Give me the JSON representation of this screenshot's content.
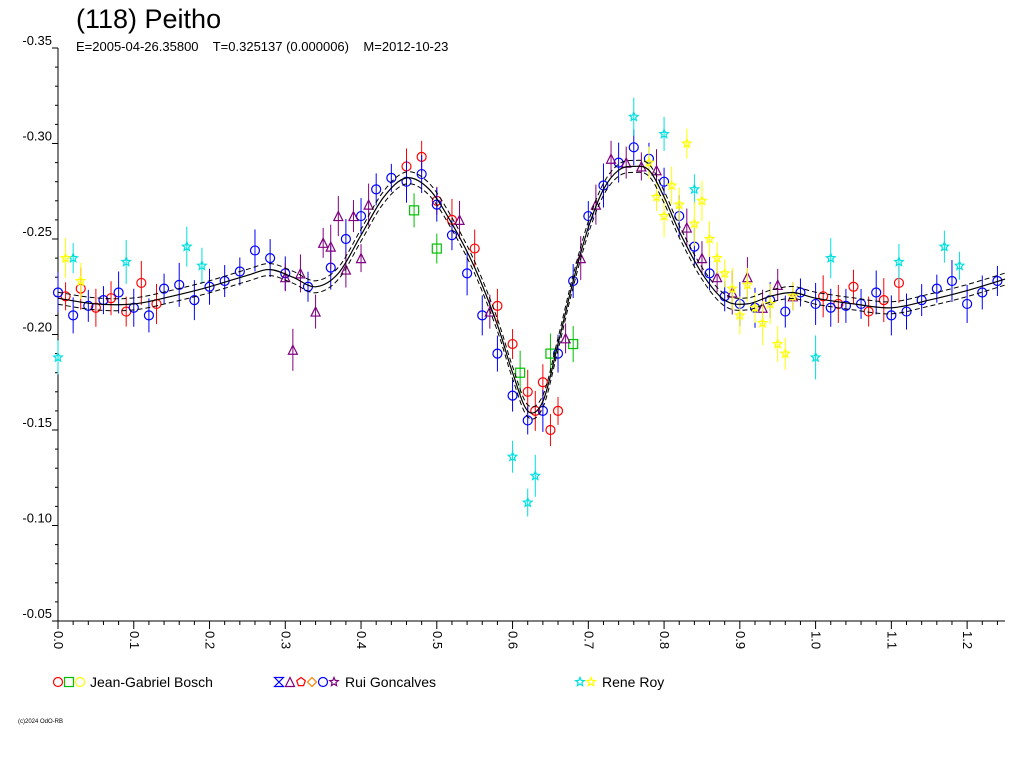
{
  "header": {
    "title": "(118) Peitho",
    "subtitle": "E=2005-04-26.35800    T=0.325137 (0.000006)    M=2012-10-23"
  },
  "legend": [
    {
      "name": "Jean-Gabriel Bosch",
      "symbols": [
        {
          "shape": "circle",
          "color": "#ff0000"
        },
        {
          "shape": "square",
          "color": "#00c000"
        },
        {
          "shape": "circle",
          "color": "#ffff00"
        }
      ]
    },
    {
      "name": "Rui Goncalves",
      "symbols": [
        {
          "shape": "hourglass",
          "color": "#0000ff"
        },
        {
          "shape": "triangle",
          "color": "#800080"
        },
        {
          "shape": "pentagon",
          "color": "#ff0000"
        },
        {
          "shape": "diamond",
          "color": "#ff8000"
        },
        {
          "shape": "circle",
          "color": "#0000ff"
        },
        {
          "shape": "star",
          "color": "#800080"
        }
      ]
    },
    {
      "name": "Rene Roy",
      "symbols": [
        {
          "shape": "star",
          "color": "#00e0e0"
        },
        {
          "shape": "star",
          "color": "#ffff00"
        }
      ]
    }
  ],
  "copyright": "(c)2024 OdO-RB",
  "chart_data": {
    "type": "scatter",
    "title": "(118) Peitho",
    "subtitle": "E=2005-04-26.35800    T=0.325137 (0.000006)    M=2012-10-23",
    "xlabel": "",
    "ylabel": "",
    "xlim": [
      0.0,
      1.25
    ],
    "ylim": [
      -0.35,
      -0.05
    ],
    "y_inverted": true,
    "grid": false,
    "x_ticks": [
      "0.0",
      "0.1",
      "0.2",
      "0.3",
      "0.4",
      "0.5",
      "0.6",
      "0.7",
      "0.8",
      "0.9",
      "1.0",
      "1.1",
      "1.2"
    ],
    "y_ticks": [
      "-0.35",
      "-0.30",
      "-0.25",
      "-0.20",
      "-0.15",
      "-0.10",
      "-0.05"
    ],
    "fit_curve": {
      "phase": [
        0.0,
        0.05,
        0.1,
        0.15,
        0.2,
        0.25,
        0.28,
        0.31,
        0.34,
        0.37,
        0.4,
        0.43,
        0.46,
        0.49,
        0.52,
        0.55,
        0.58,
        0.6,
        0.62,
        0.64,
        0.66,
        0.68,
        0.7,
        0.72,
        0.74,
        0.76,
        0.78,
        0.8,
        0.82,
        0.85,
        0.88,
        0.91,
        0.94,
        0.97,
        1.0,
        1.05,
        1.1,
        1.15,
        1.2,
        1.25
      ],
      "mag": [
        -0.219,
        -0.216,
        -0.216,
        -0.22,
        -0.225,
        -0.231,
        -0.234,
        -0.23,
        -0.225,
        -0.232,
        -0.252,
        -0.272,
        -0.282,
        -0.276,
        -0.258,
        -0.235,
        -0.205,
        -0.18,
        -0.16,
        -0.165,
        -0.195,
        -0.228,
        -0.256,
        -0.276,
        -0.286,
        -0.288,
        -0.286,
        -0.272,
        -0.254,
        -0.232,
        -0.218,
        -0.216,
        -0.22,
        -0.222,
        -0.219,
        -0.216,
        -0.214,
        -0.218,
        -0.223,
        -0.229
      ]
    },
    "series": [
      {
        "name": "Jean-Gabriel Bosch",
        "color": "#ff0000",
        "marker": "circle",
        "x": [
          0.01,
          0.03,
          0.05,
          0.07,
          0.09,
          0.11,
          0.13,
          0.46,
          0.48,
          0.5,
          0.52,
          0.55,
          0.58,
          0.6,
          0.62,
          0.63,
          0.64,
          0.65,
          0.66,
          1.01,
          1.03,
          1.05,
          1.07,
          1.09,
          1.11
        ],
        "y": [
          -0.22,
          -0.224,
          -0.214,
          -0.219,
          -0.212,
          -0.227,
          -0.216,
          -0.288,
          -0.293,
          -0.27,
          -0.26,
          -0.245,
          -0.215,
          -0.195,
          -0.17,
          -0.16,
          -0.175,
          -0.15,
          -0.16,
          -0.22,
          -0.216,
          -0.225,
          -0.212,
          -0.218,
          -0.227
        ]
      },
      {
        "name": "Jean-Gabriel Bosch",
        "color": "#00c000",
        "marker": "square",
        "x": [
          0.47,
          0.5,
          0.61,
          0.65,
          0.68
        ],
        "y": [
          -0.265,
          -0.245,
          -0.18,
          -0.19,
          -0.195
        ]
      },
      {
        "name": "Rui Goncalves",
        "color": "#0000ff",
        "marker": "circle",
        "x": [
          0.0,
          0.02,
          0.04,
          0.06,
          0.08,
          0.1,
          0.12,
          0.14,
          0.16,
          0.18,
          0.2,
          0.22,
          0.24,
          0.26,
          0.28,
          0.3,
          0.33,
          0.36,
          0.38,
          0.4,
          0.42,
          0.44,
          0.46,
          0.48,
          0.5,
          0.52,
          0.54,
          0.56,
          0.58,
          0.6,
          0.62,
          0.64,
          0.66,
          0.68,
          0.7,
          0.72,
          0.74,
          0.76,
          0.78,
          0.8,
          0.82,
          0.84,
          0.86,
          0.88,
          0.9,
          0.92,
          0.94,
          0.96,
          0.98,
          1.0,
          1.02,
          1.04,
          1.06,
          1.08,
          1.1,
          1.12,
          1.14,
          1.16,
          1.18,
          1.2,
          1.22,
          1.24
        ],
        "y": [
          -0.222,
          -0.21,
          -0.215,
          -0.218,
          -0.222,
          -0.214,
          -0.21,
          -0.224,
          -0.226,
          -0.218,
          -0.225,
          -0.228,
          -0.233,
          -0.244,
          -0.24,
          -0.232,
          -0.225,
          -0.235,
          -0.25,
          -0.262,
          -0.276,
          -0.282,
          -0.28,
          -0.284,
          -0.268,
          -0.252,
          -0.232,
          -0.21,
          -0.19,
          -0.168,
          -0.155,
          -0.16,
          -0.19,
          -0.228,
          -0.262,
          -0.278,
          -0.29,
          -0.298,
          -0.292,
          -0.28,
          -0.262,
          -0.246,
          -0.232,
          -0.22,
          -0.216,
          -0.214,
          -0.218,
          -0.212,
          -0.222,
          -0.216,
          -0.214,
          -0.215,
          -0.216,
          -0.222,
          -0.21,
          -0.212,
          -0.218,
          -0.224,
          -0.228,
          -0.216,
          -0.222,
          -0.228
        ]
      },
      {
        "name": "Rui Goncalves",
        "color": "#800080",
        "marker": "triangle",
        "x": [
          0.3,
          0.31,
          0.32,
          0.34,
          0.35,
          0.36,
          0.37,
          0.38,
          0.39,
          0.4,
          0.41,
          0.53,
          0.57,
          0.67,
          0.69,
          0.71,
          0.73,
          0.75,
          0.77,
          0.79,
          0.83,
          0.85,
          0.87,
          0.89,
          0.91,
          0.93,
          0.95,
          0.97
        ],
        "y": [
          -0.23,
          -0.192,
          -0.232,
          -0.212,
          -0.248,
          -0.246,
          -0.262,
          -0.234,
          -0.262,
          -0.24,
          -0.268,
          -0.26,
          -0.212,
          -0.198,
          -0.24,
          -0.268,
          -0.292,
          -0.29,
          -0.288,
          -0.286,
          -0.256,
          -0.24,
          -0.23,
          -0.222,
          -0.23,
          -0.214,
          -0.226,
          -0.22
        ]
      },
      {
        "name": "Rene Roy",
        "color": "#00e0e0",
        "marker": "star",
        "x": [
          0.0,
          0.02,
          0.09,
          0.17,
          0.19,
          0.6,
          0.62,
          0.63,
          0.76,
          0.8,
          0.84,
          1.0,
          1.02,
          1.11,
          1.17,
          1.19
        ],
        "y": [
          -0.188,
          -0.24,
          -0.238,
          -0.246,
          -0.236,
          -0.136,
          -0.112,
          -0.126,
          -0.314,
          -0.305,
          -0.276,
          -0.188,
          -0.24,
          -0.238,
          -0.246,
          -0.236
        ]
      },
      {
        "name": "Rene Roy",
        "color": "#ffff00",
        "marker": "star",
        "x": [
          0.01,
          0.03,
          0.78,
          0.79,
          0.8,
          0.81,
          0.82,
          0.83,
          0.84,
          0.85,
          0.86,
          0.87,
          0.88,
          0.89,
          0.9,
          0.91,
          0.92,
          0.93,
          0.94,
          0.95,
          0.96,
          0.97
        ],
        "y": [
          -0.24,
          -0.228,
          -0.29,
          -0.272,
          -0.262,
          -0.278,
          -0.268,
          -0.3,
          -0.258,
          -0.27,
          -0.25,
          -0.24,
          -0.232,
          -0.224,
          -0.21,
          -0.226,
          -0.214,
          -0.206,
          -0.216,
          -0.195,
          -0.19,
          -0.22
        ]
      }
    ]
  }
}
